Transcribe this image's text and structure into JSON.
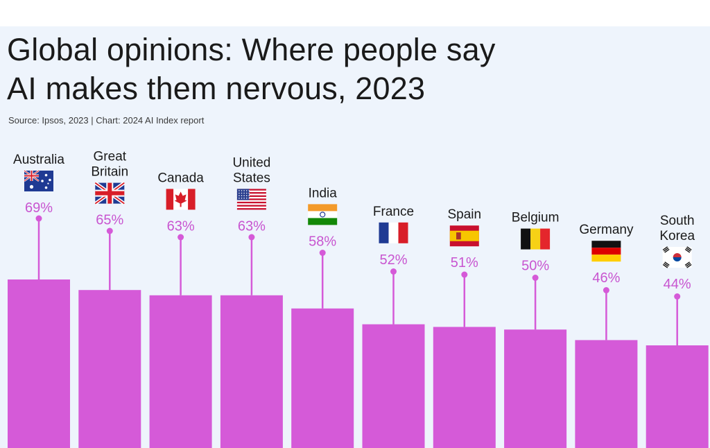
{
  "header": {
    "title_line1": "Global opinions: Where people say",
    "title_line2": "AI makes them nervous, 2023",
    "source": "Source: Ipsos, 2023 | Chart: 2024 AI Index report"
  },
  "colors": {
    "background": "#eef4fc",
    "bar": "#d55ad8",
    "value_text": "#c855d0",
    "label_text": "#1a1a1a"
  },
  "chart_data": {
    "type": "bar",
    "title": "Global opinions: Where people say AI makes them nervous, 2023",
    "unit": "%",
    "categories": [
      {
        "label": [
          "Australia"
        ],
        "flag": "australia-flag"
      },
      {
        "label": [
          "Great",
          "Britain"
        ],
        "flag": "great-britain-flag"
      },
      {
        "label": [
          "Canada"
        ],
        "flag": "canada-flag"
      },
      {
        "label": [
          "United",
          "States"
        ],
        "flag": "united-states-flag"
      },
      {
        "label": [
          "India"
        ],
        "flag": "india-flag"
      },
      {
        "label": [
          "France"
        ],
        "flag": "france-flag"
      },
      {
        "label": [
          "Spain"
        ],
        "flag": "spain-flag"
      },
      {
        "label": [
          "Belgium"
        ],
        "flag": "belgium-flag"
      },
      {
        "label": [
          "Germany"
        ],
        "flag": "germany-flag"
      },
      {
        "label": [
          "South",
          "Korea"
        ],
        "flag": "south-korea-flag"
      }
    ],
    "values": [
      69,
      65,
      63,
      63,
      58,
      52,
      51,
      50,
      46,
      44
    ],
    "value_labels": [
      "69%",
      "65%",
      "63%",
      "63%",
      "58%",
      "52%",
      "51%",
      "50%",
      "46%",
      "44%"
    ]
  }
}
